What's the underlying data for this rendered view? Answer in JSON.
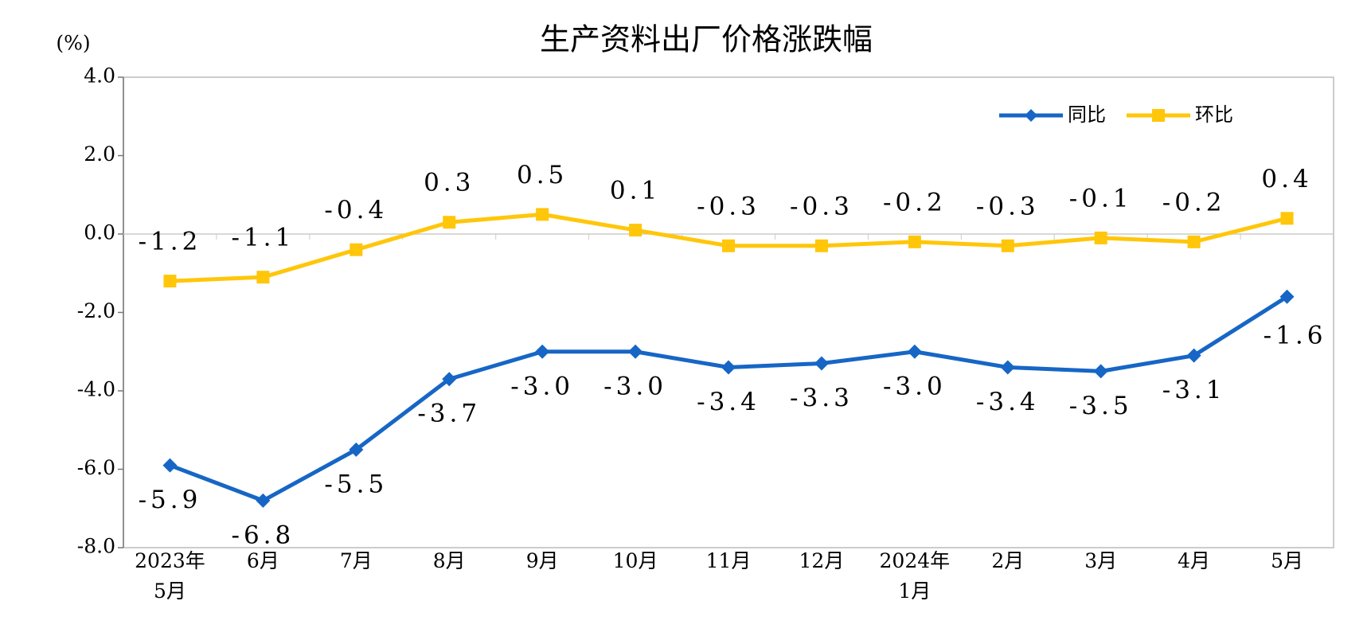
{
  "chart_data": {
    "type": "line",
    "title": "生产资料出厂价格涨跌幅",
    "y_label": "(%)",
    "categories": [
      "2023年\n5月",
      "6月",
      "7月",
      "8月",
      "9月",
      "10月",
      "11月",
      "12月",
      "2024年\n1月",
      "2月",
      "3月",
      "4月",
      "5月"
    ],
    "series": [
      {
        "name": "同比",
        "color": "#1666C5",
        "marker": "diamond",
        "values": [
          -5.9,
          -6.8,
          -5.5,
          -3.7,
          -3.0,
          -3.0,
          -3.4,
          -3.3,
          -3.0,
          -3.4,
          -3.5,
          -3.1,
          -1.6
        ],
        "value_labels": [
          "-5.9",
          "-6.8",
          "-5.5",
          "-3.7",
          "-3.0",
          "-3.0",
          "-3.4",
          "-3.3",
          "-3.0",
          "-3.4",
          "-3.5",
          "-3.1",
          "-1.6"
        ]
      },
      {
        "name": "环比",
        "color": "#FFC60A",
        "marker": "square",
        "values": [
          -1.2,
          -1.1,
          -0.4,
          0.3,
          0.5,
          0.1,
          -0.3,
          -0.3,
          -0.2,
          -0.3,
          -0.1,
          -0.2,
          0.4
        ],
        "value_labels": [
          "-1.2",
          "-1.1",
          "-0.4",
          "0.3",
          "0.5",
          "0.1",
          "-0.3",
          "-0.3",
          "-0.2",
          "-0.3",
          "-0.1",
          "-0.2",
          "0.4"
        ]
      }
    ],
    "ylim": [
      -8,
      4
    ],
    "yticks": [
      {
        "value": -8,
        "label": "-8.0"
      },
      {
        "value": -6,
        "label": "-6.0"
      },
      {
        "value": -4,
        "label": "-4.0"
      },
      {
        "value": -2,
        "label": "-2.0"
      },
      {
        "value": 0,
        "label": "0.0"
      },
      {
        "value": 2,
        "label": "2.0"
      },
      {
        "value": 4,
        "label": "4.0"
      }
    ],
    "legend": "top-right"
  }
}
